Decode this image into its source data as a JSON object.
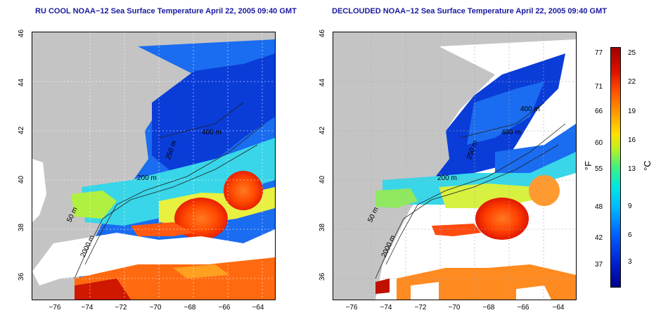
{
  "titles": {
    "left": "RU COOL NOAA−12 Sea Surface Temperature April 22, 2005 09:40 GMT",
    "right": "DECLOUDED NOAA−12 Sea Surface Temperature April 22, 2005 09:40 GMT"
  },
  "axes": {
    "x_ticks": [
      "−76",
      "−74",
      "−72",
      "−70",
      "−68",
      "−66",
      "−64"
    ],
    "y_ticks": [
      "46",
      "44",
      "42",
      "40",
      "38",
      "36"
    ]
  },
  "contour_labels": [
    "400 m",
    "250 m",
    "200 m",
    "50 m",
    "2000 m"
  ],
  "colorbar": {
    "fahrenheit_label": "°F",
    "celsius_label": "°C",
    "fahrenheit_ticks": [
      "77",
      "71",
      "66",
      "60",
      "55",
      "48",
      "42",
      "37"
    ],
    "celsius_ticks": [
      "25",
      "22",
      "19",
      "16",
      "13",
      "9",
      "6",
      "3"
    ]
  },
  "colors": {
    "land": "#c4c4c4",
    "cloud": "#ffffff",
    "cold": "#0040e0",
    "warm": "#ff3000",
    "title": "#1a1aa0"
  }
}
